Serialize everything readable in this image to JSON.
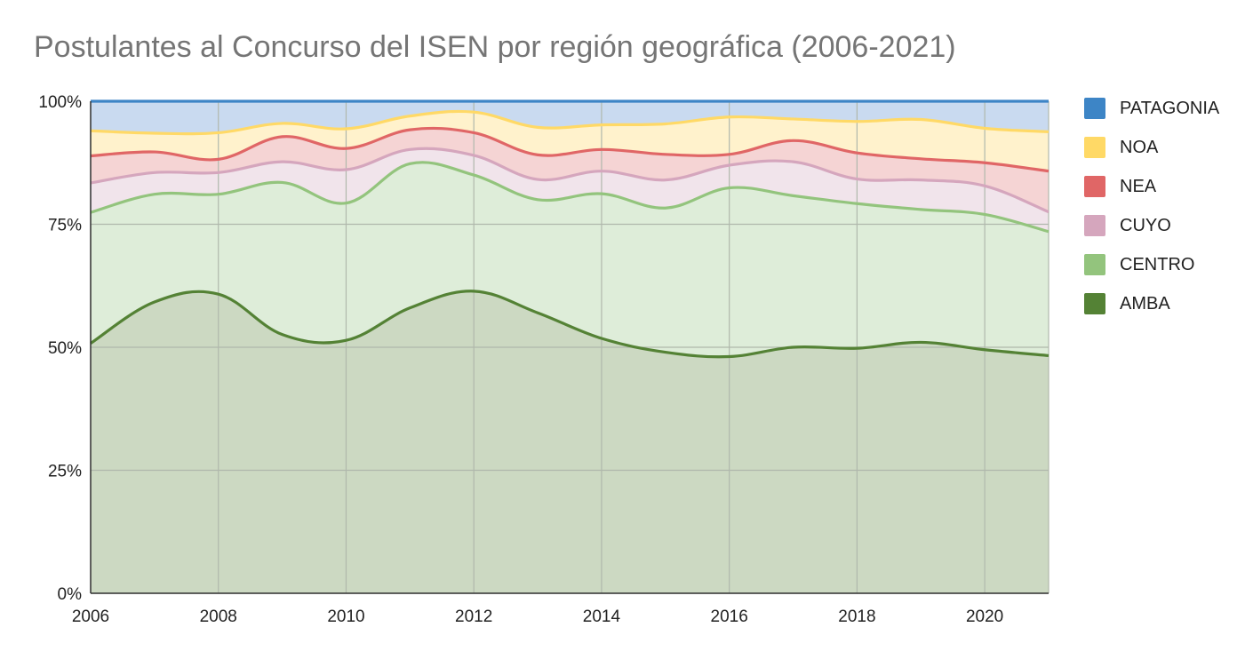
{
  "chart_data": {
    "type": "area",
    "stacked": true,
    "percent": true,
    "title": "Postulantes al Concurso del ISEN por región geográfica (2006-2021)",
    "xlabel": "",
    "ylabel": "",
    "x": [
      2006,
      2007,
      2008,
      2009,
      2010,
      2011,
      2012,
      2013,
      2014,
      2015,
      2016,
      2017,
      2018,
      2019,
      2020,
      2021
    ],
    "x_ticks": [
      2006,
      2008,
      2010,
      2012,
      2014,
      2016,
      2018,
      2020
    ],
    "y_ticks": [
      "0%",
      "25%",
      "50%",
      "75%",
      "100%"
    ],
    "ylim": [
      0,
      100
    ],
    "grid": true,
    "legend_position": "right",
    "series": [
      {
        "name": "AMBA",
        "color": "#548235",
        "fill": "#ccd9c2",
        "values": [
          50.8,
          59.2,
          60.8,
          52.6,
          51.4,
          58.0,
          61.4,
          57.0,
          51.8,
          49.0,
          48.1,
          50.0,
          49.8,
          51.0,
          49.5,
          48.3
        ]
      },
      {
        "name": "CENTRO",
        "color": "#93c47d",
        "fill": "#deedd9",
        "values": [
          26.6,
          21.9,
          20.3,
          30.9,
          27.9,
          29.3,
          23.6,
          23.0,
          29.4,
          29.3,
          34.3,
          30.8,
          29.4,
          27.0,
          27.5,
          25.2
        ]
      },
      {
        "name": "CUYO",
        "color": "#d5a6bd",
        "fill": "#f1e4eb",
        "values": [
          6.0,
          4.4,
          4.4,
          4.2,
          6.8,
          2.9,
          4.0,
          4.1,
          4.6,
          5.7,
          4.6,
          6.9,
          5.0,
          6.0,
          5.8,
          4.0
        ]
      },
      {
        "name": "NEA",
        "color": "#e06666",
        "fill": "#f5d4d4",
        "values": [
          5.5,
          4.2,
          2.7,
          5.1,
          4.3,
          4.0,
          4.6,
          5.0,
          4.4,
          5.2,
          2.2,
          4.3,
          5.3,
          4.3,
          4.7,
          8.3
        ]
      },
      {
        "name": "NOA",
        "color": "#ffd966",
        "fill": "#fff2cc",
        "values": [
          5.1,
          3.8,
          5.4,
          2.7,
          4.0,
          2.8,
          4.2,
          5.6,
          5.0,
          6.2,
          7.6,
          4.4,
          6.4,
          8.0,
          7.0,
          8.0
        ]
      },
      {
        "name": "PATAGONIA",
        "color": "#3d85c6",
        "fill": "#c9daf0",
        "values": [
          6.0,
          6.5,
          6.4,
          4.5,
          5.6,
          3.0,
          2.2,
          5.3,
          4.8,
          4.6,
          3.2,
          3.6,
          4.1,
          3.7,
          5.5,
          6.2
        ]
      }
    ],
    "legend_order": [
      "PATAGONIA",
      "NOA",
      "NEA",
      "CUYO",
      "CENTRO",
      "AMBA"
    ]
  }
}
